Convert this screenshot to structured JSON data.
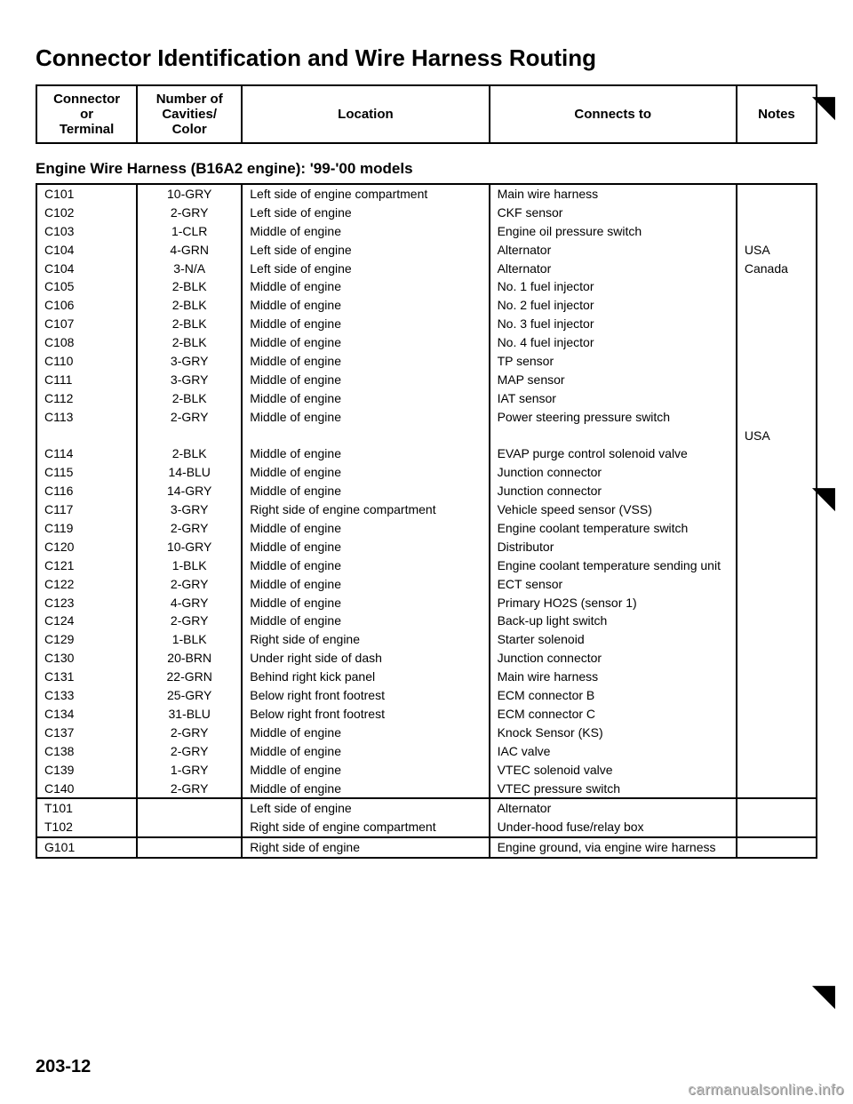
{
  "title": "Connector Identification and Wire Harness Routing",
  "header": {
    "connector": "Connector\nor\nTerminal",
    "cavities": "Number of\nCavities/\nColor",
    "location": "Location",
    "connects_to": "Connects to",
    "notes": "Notes"
  },
  "subheading": "Engine Wire Harness (B16A2 engine): '99-'00 models",
  "section_c": [
    {
      "id": "C101",
      "cav": "10-GRY",
      "loc": "Left side of engine compartment",
      "to": "Main wire harness",
      "note": ""
    },
    {
      "id": "C102",
      "cav": "2-GRY",
      "loc": "Left side of engine",
      "to": "CKF sensor",
      "note": ""
    },
    {
      "id": "C103",
      "cav": "1-CLR",
      "loc": "Middle of engine",
      "to": "Engine oil pressure switch",
      "note": ""
    },
    {
      "id": "C104",
      "cav": "4-GRN",
      "loc": "Left side of engine",
      "to": "Alternator",
      "note": "USA"
    },
    {
      "id": "C104",
      "cav": "3-N/A",
      "loc": "Left side of engine",
      "to": "Alternator",
      "note": "Canada"
    },
    {
      "id": "C105",
      "cav": "2-BLK",
      "loc": "Middle of engine",
      "to": "No. 1 fuel injector",
      "note": ""
    },
    {
      "id": "C106",
      "cav": "2-BLK",
      "loc": "Middle of engine",
      "to": "No. 2 fuel injector",
      "note": ""
    },
    {
      "id": "C107",
      "cav": "2-BLK",
      "loc": "Middle of engine",
      "to": "No. 3 fuel injector",
      "note": ""
    },
    {
      "id": "C108",
      "cav": "2-BLK",
      "loc": "Middle of engine",
      "to": "No. 4 fuel injector",
      "note": ""
    },
    {
      "id": "C110",
      "cav": "3-GRY",
      "loc": "Middle of engine",
      "to": "TP sensor",
      "note": ""
    },
    {
      "id": "C111",
      "cav": "3-GRY",
      "loc": "Middle of engine",
      "to": "MAP sensor",
      "note": ""
    },
    {
      "id": "C112",
      "cav": "2-BLK",
      "loc": "Middle of engine",
      "to": "IAT sensor",
      "note": ""
    },
    {
      "id": "C113",
      "cav": "2-GRY",
      "loc": "Middle of engine",
      "to": "Power steering pressure switch",
      "note": ""
    },
    {
      "id": "",
      "cav": "",
      "loc": "",
      "to": "",
      "note": "USA"
    },
    {
      "id": "C114",
      "cav": "2-BLK",
      "loc": "Middle of engine",
      "to": "EVAP purge control solenoid valve",
      "note": ""
    },
    {
      "id": "C115",
      "cav": "14-BLU",
      "loc": "Middle of engine",
      "to": "Junction connector",
      "note": ""
    },
    {
      "id": "C116",
      "cav": "14-GRY",
      "loc": "Middle of engine",
      "to": "Junction connector",
      "note": ""
    },
    {
      "id": "C117",
      "cav": "3-GRY",
      "loc": "Right side of engine compartment",
      "to": "Vehicle speed sensor (VSS)",
      "note": ""
    },
    {
      "id": "C119",
      "cav": "2-GRY",
      "loc": "Middle of engine",
      "to": "Engine coolant temperature switch",
      "note": ""
    },
    {
      "id": "C120",
      "cav": "10-GRY",
      "loc": "Middle of engine",
      "to": "Distributor",
      "note": ""
    },
    {
      "id": "C121",
      "cav": "1-BLK",
      "loc": "Middle of engine",
      "to": "Engine coolant temperature sending unit",
      "note": ""
    },
    {
      "id": "C122",
      "cav": "2-GRY",
      "loc": "Middle of engine",
      "to": "ECT sensor",
      "note": ""
    },
    {
      "id": "C123",
      "cav": "4-GRY",
      "loc": "Middle of engine",
      "to": "Primary HO2S (sensor 1)",
      "note": ""
    },
    {
      "id": "C124",
      "cav": "2-GRY",
      "loc": "Middle of engine",
      "to": "Back-up light switch",
      "note": ""
    },
    {
      "id": "C129",
      "cav": "1-BLK",
      "loc": "Right side of engine",
      "to": "Starter solenoid",
      "note": ""
    },
    {
      "id": "C130",
      "cav": "20-BRN",
      "loc": "Under right side of dash",
      "to": "Junction connector",
      "note": ""
    },
    {
      "id": "C131",
      "cav": "22-GRN",
      "loc": "Behind right kick panel",
      "to": "Main wire harness",
      "note": ""
    },
    {
      "id": "C133",
      "cav": "25-GRY",
      "loc": "Below right front footrest",
      "to": "ECM connector B",
      "note": ""
    },
    {
      "id": "C134",
      "cav": "31-BLU",
      "loc": "Below right front footrest",
      "to": "ECM connector C",
      "note": ""
    },
    {
      "id": "C137",
      "cav": "2-GRY",
      "loc": "Middle of engine",
      "to": "Knock Sensor (KS)",
      "note": ""
    },
    {
      "id": "C138",
      "cav": "2-GRY",
      "loc": "Middle of engine",
      "to": "IAC valve",
      "note": ""
    },
    {
      "id": "C139",
      "cav": "1-GRY",
      "loc": "Middle of engine",
      "to": "VTEC solenoid valve",
      "note": ""
    },
    {
      "id": "C140",
      "cav": "2-GRY",
      "loc": "Middle of engine",
      "to": "VTEC pressure switch",
      "note": ""
    }
  ],
  "section_t": [
    {
      "id": "T101",
      "cav": "",
      "loc": "Left side of engine",
      "to": "Alternator",
      "note": ""
    },
    {
      "id": "T102",
      "cav": "",
      "loc": "Right side of engine compartment",
      "to": "Under-hood fuse/relay box",
      "note": ""
    }
  ],
  "section_g": [
    {
      "id": "G101",
      "cav": "",
      "loc": "Right side of engine",
      "to": "Engine ground, via engine wire harness",
      "note": ""
    }
  ],
  "pageno": "203-12",
  "watermark": "carmanualsonline.info"
}
